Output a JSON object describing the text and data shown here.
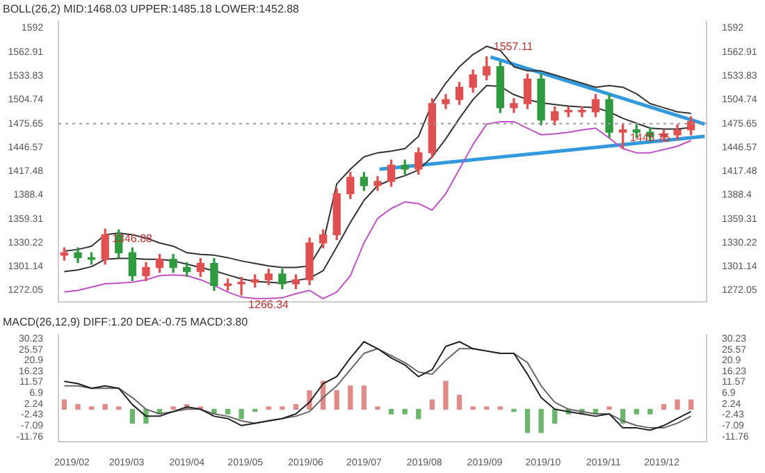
{
  "chart_data": [
    {
      "type": "candlestick",
      "title": "BOLL(26,2) MID:1468.03 UPPER:1485.18 LOWER:1452.88",
      "x": [
        "2019-01-28",
        "2019-02-04",
        "2019-02-11",
        "2019-02-18",
        "2019-02-25",
        "2019-03-04",
        "2019-03-11",
        "2019-03-18",
        "2019-03-25",
        "2019-04-01",
        "2019-04-08",
        "2019-04-15",
        "2019-04-22",
        "2019-04-29",
        "2019-05-06",
        "2019-05-13",
        "2019-05-20",
        "2019-05-27",
        "2019-06-03",
        "2019-06-10",
        "2019-06-17",
        "2019-06-24",
        "2019-07-01",
        "2019-07-08",
        "2019-07-15",
        "2019-07-22",
        "2019-07-29",
        "2019-08-05",
        "2019-08-12",
        "2019-08-19",
        "2019-08-26",
        "2019-09-02",
        "2019-09-09",
        "2019-09-16",
        "2019-09-23",
        "2019-09-30",
        "2019-10-07",
        "2019-10-14",
        "2019-10-21",
        "2019-10-28",
        "2019-11-04",
        "2019-11-11",
        "2019-11-18",
        "2019-11-25",
        "2019-12-02",
        "2019-12-09",
        "2019-12-16"
      ],
      "ohlc": [
        [
          1315,
          1324,
          1309,
          1318
        ],
        [
          1318,
          1324,
          1306,
          1312
        ],
        [
          1312,
          1318,
          1304,
          1310
        ],
        [
          1310,
          1346.88,
          1304,
          1340
        ],
        [
          1340,
          1346,
          1312,
          1318
        ],
        [
          1318,
          1324,
          1284,
          1290
        ],
        [
          1290,
          1306,
          1284,
          1300
        ],
        [
          1300,
          1316,
          1294,
          1310
        ],
        [
          1310,
          1316,
          1294,
          1300
        ],
        [
          1300,
          1306,
          1289,
          1295
        ],
        [
          1295,
          1311,
          1289,
          1305
        ],
        [
          1305,
          1311,
          1272,
          1278
        ],
        [
          1278,
          1286,
          1272,
          1280
        ],
        [
          1280,
          1288,
          1266.34,
          1282
        ],
        [
          1282,
          1291,
          1276,
          1285
        ],
        [
          1285,
          1298,
          1279,
          1292
        ],
        [
          1292,
          1298,
          1274,
          1280
        ],
        [
          1280,
          1291,
          1274,
          1285
        ],
        [
          1285,
          1336,
          1279,
          1330
        ],
        [
          1330,
          1346,
          1324,
          1340
        ],
        [
          1340,
          1396,
          1334,
          1390
        ],
        [
          1390,
          1416,
          1384,
          1410
        ],
        [
          1410,
          1416,
          1394,
          1400
        ],
        [
          1400,
          1411,
          1394,
          1405
        ],
        [
          1405,
          1431,
          1399,
          1425
        ],
        [
          1425,
          1431,
          1414,
          1420
        ],
        [
          1420,
          1446,
          1414,
          1440
        ],
        [
          1440,
          1506,
          1434,
          1500
        ],
        [
          1500,
          1511,
          1494,
          1505
        ],
        [
          1505,
          1526,
          1499,
          1520
        ],
        [
          1520,
          1541,
          1514,
          1535
        ],
        [
          1535,
          1557.11,
          1529,
          1545
        ],
        [
          1545,
          1551,
          1489,
          1495
        ],
        [
          1495,
          1506,
          1489,
          1500
        ],
        [
          1500,
          1536,
          1494,
          1530
        ],
        [
          1530,
          1536,
          1474,
          1480
        ],
        [
          1480,
          1496,
          1474,
          1490
        ],
        [
          1490,
          1496,
          1484,
          1490
        ],
        [
          1490,
          1496,
          1484,
          1490
        ],
        [
          1490,
          1511,
          1484,
          1505
        ],
        [
          1505,
          1511,
          1459,
          1465
        ],
        [
          1465,
          1474,
          1445.75,
          1468
        ],
        [
          1468,
          1474,
          1459,
          1465
        ],
        [
          1465,
          1471,
          1454,
          1460
        ],
        [
          1460,
          1468,
          1454,
          1462
        ],
        [
          1462,
          1474,
          1456,
          1468
        ],
        [
          1468,
          1484,
          1462,
          1478
        ]
      ],
      "colors": [
        "#e05050",
        "#2f9a3f",
        "#2f9a3f",
        "#e05050",
        "#2f9a3f",
        "#2f9a3f",
        "#e05050",
        "#e05050",
        "#2f9a3f",
        "#2f9a3f",
        "#e05050",
        "#2f9a3f",
        "#e05050",
        "#e05050",
        "#e05050",
        "#e05050",
        "#2f9a3f",
        "#e05050",
        "#e05050",
        "#e05050",
        "#e05050",
        "#e05050",
        "#2f9a3f",
        "#e05050",
        "#e05050",
        "#2f9a3f",
        "#e05050",
        "#e05050",
        "#e05050",
        "#e05050",
        "#e05050",
        "#e05050",
        "#2f9a3f",
        "#e05050",
        "#e05050",
        "#2f9a3f",
        "#e05050",
        "#e05050",
        "#e05050",
        "#e05050",
        "#2f9a3f",
        "#e05050",
        "#2f9a3f",
        "#2f9a3f",
        "#e05050",
        "#e05050",
        "#e05050"
      ],
      "series": [
        {
          "type": "line",
          "color": "#333333",
          "values": [
            1320,
            1322,
            1326,
            1340,
            1342,
            1340,
            1336,
            1330,
            1326,
            1318,
            1316,
            1315,
            1312,
            1308,
            1305,
            1302,
            1300,
            1300,
            1302,
            1330,
            1402,
            1420,
            1435,
            1440,
            1442,
            1445,
            1460,
            1500,
            1525,
            1545,
            1560,
            1570,
            1565,
            1545,
            1540,
            1540,
            1535,
            1530,
            1525,
            1520,
            1522,
            1520,
            1512,
            1500,
            1495,
            1490,
            1488
          ]
        },
        {
          "type": "line",
          "color": "#333333",
          "values": [
            1295,
            1297,
            1301,
            1310,
            1311,
            1311,
            1310,
            1310,
            1308,
            1304,
            1300,
            1296,
            1291,
            1286,
            1283,
            1282,
            1281,
            1284,
            1287,
            1296,
            1325,
            1355,
            1382,
            1400,
            1407,
            1412,
            1419,
            1435,
            1457,
            1482,
            1505,
            1522,
            1521,
            1511,
            1505,
            1501,
            1499,
            1497,
            1496,
            1495,
            1490,
            1482,
            1476,
            1470,
            1469,
            1469,
            1471
          ]
        },
        {
          "type": "line",
          "color": "#c050c8",
          "values": [
            1270,
            1272,
            1276,
            1280,
            1281,
            1282,
            1285,
            1290,
            1291,
            1290,
            1285,
            1278,
            1270,
            1264,
            1262,
            1262,
            1263,
            1268,
            1272,
            1262,
            1270,
            1290,
            1330,
            1360,
            1372,
            1380,
            1378,
            1370,
            1390,
            1420,
            1450,
            1475,
            1478,
            1478,
            1470,
            1462,
            1463,
            1465,
            1468,
            1470,
            1458,
            1445,
            1440,
            1440,
            1444,
            1448,
            1455
          ]
        },
        {
          "type": "line",
          "color": "#3399dd",
          "x": [
            "2019-09-04",
            "2019-12-23"
          ],
          "values": [
            1557,
            1475
          ]
        },
        {
          "type": "line",
          "color": "#3399dd",
          "x": [
            "2019-07-09",
            "2019-12-23"
          ],
          "values": [
            1420,
            1460
          ]
        }
      ],
      "annotations": [
        {
          "text": "1346.88",
          "x": "2019-02-18",
          "y": 1346.88
        },
        {
          "text": "1557.11",
          "x": "2019-09-02",
          "y": 1557.11
        },
        {
          "text": "1266.34",
          "x": "2019-04-29",
          "y": 1266.34
        },
        {
          "text": "1445.75",
          "x": "2019-11-11",
          "y": 1445.75
        }
      ],
      "ref_lines": [
        {
          "axis": "y",
          "value": 1475.65,
          "label": null,
          "color": "#999999",
          "line_style": "dotted"
        }
      ],
      "xlim": [
        "2019-01-25",
        "2019-12-24"
      ],
      "ylim": [
        1258,
        1600
      ],
      "yticks": [
        1272.05,
        1301.14,
        1330.22,
        1359.31,
        1388.4,
        1417.48,
        1446.57,
        1475.65,
        1504.74,
        1533.83,
        1562.91,
        1592
      ],
      "y2lim": [
        1258,
        1600
      ],
      "y2ticks": [
        1272.05,
        1301.14,
        1330.22,
        1359.31,
        1388.4,
        1417.48,
        1446.57,
        1475.65,
        1504.74,
        1533.83,
        1562.91,
        1592
      ],
      "tick_labels": "y",
      "legend": false
    },
    {
      "type": "bar",
      "title": "MACD(26,12,9) DIFF:1.20 DEA:-0.75 MACD:3.80",
      "x": [
        "2019-01-28",
        "2019-02-04",
        "2019-02-11",
        "2019-02-18",
        "2019-02-25",
        "2019-03-04",
        "2019-03-11",
        "2019-03-18",
        "2019-03-25",
        "2019-04-01",
        "2019-04-08",
        "2019-04-15",
        "2019-04-22",
        "2019-04-29",
        "2019-05-06",
        "2019-05-13",
        "2019-05-20",
        "2019-05-27",
        "2019-06-03",
        "2019-06-10",
        "2019-06-17",
        "2019-06-24",
        "2019-07-01",
        "2019-07-08",
        "2019-07-15",
        "2019-07-22",
        "2019-07-29",
        "2019-08-05",
        "2019-08-12",
        "2019-08-19",
        "2019-08-26",
        "2019-09-02",
        "2019-09-09",
        "2019-09-16",
        "2019-09-23",
        "2019-09-30",
        "2019-10-07",
        "2019-10-14",
        "2019-10-21",
        "2019-10-28",
        "2019-11-04",
        "2019-11-11",
        "2019-11-18",
        "2019-11-25",
        "2019-12-02",
        "2019-12-09",
        "2019-12-16"
      ],
      "values": [
        4,
        2,
        1,
        2,
        1,
        -6,
        -6,
        -2,
        1,
        2,
        1,
        -2,
        -2,
        -4,
        -1,
        1,
        1,
        2,
        8,
        12,
        8,
        10,
        10,
        1,
        -2,
        -2,
        -4,
        4,
        12,
        6,
        1,
        1,
        1,
        -1,
        -10,
        -10,
        -6,
        -2,
        -2,
        -2,
        1,
        -6,
        -2,
        -2,
        2,
        4,
        4
      ],
      "colors": [
        "#e08a8a",
        "#e08a8a",
        "#e08a8a",
        "#e08a8a",
        "#e08a8a",
        "#6db56d",
        "#6db56d",
        "#6db56d",
        "#e08a8a",
        "#e08a8a",
        "#e08a8a",
        "#6db56d",
        "#6db56d",
        "#6db56d",
        "#6db56d",
        "#e08a8a",
        "#e08a8a",
        "#e08a8a",
        "#e08a8a",
        "#e08a8a",
        "#e08a8a",
        "#e08a8a",
        "#e08a8a",
        "#e08a8a",
        "#6db56d",
        "#6db56d",
        "#6db56d",
        "#e08a8a",
        "#e08a8a",
        "#e08a8a",
        "#e08a8a",
        "#e08a8a",
        "#e08a8a",
        "#6db56d",
        "#6db56d",
        "#6db56d",
        "#6db56d",
        "#6db56d",
        "#6db56d",
        "#6db56d",
        "#e08a8a",
        "#6db56d",
        "#6db56d",
        "#6db56d",
        "#e08a8a",
        "#e08a8a",
        "#e08a8a"
      ],
      "series": [
        {
          "type": "line",
          "color": "#222222",
          "values": [
            12,
            11,
            9,
            10,
            9,
            2,
            -3,
            -3,
            -1,
            1,
            0,
            -3,
            -4,
            -7,
            -6,
            -5,
            -4,
            -2,
            3,
            11,
            14,
            22,
            29,
            26,
            22,
            19,
            14,
            17,
            27,
            29,
            26,
            25,
            24,
            24,
            15,
            5,
            0,
            -1,
            -2,
            -3,
            -2,
            -8,
            -8,
            -9,
            -7,
            -4,
            -1
          ]
        },
        {
          "type": "line",
          "color": "#666666",
          "values": [
            10,
            10,
            9,
            9,
            9,
            5,
            0,
            -2,
            -1,
            0,
            0,
            -2,
            -3,
            -5,
            -6,
            -5,
            -4,
            -3,
            -1,
            5,
            10,
            17,
            24,
            26,
            23,
            20,
            16,
            15,
            21,
            26,
            26,
            25,
            24,
            24,
            20,
            10,
            3,
            0,
            -1,
            -2,
            -2,
            -5,
            -7,
            -8,
            -8,
            -6,
            -3
          ]
        }
      ],
      "xlim": [
        "2019-01-25",
        "2019-12-24"
      ],
      "xticks": [
        {
          "value": "2019-02-01",
          "label": "2019/02"
        },
        {
          "value": "2019-03-01",
          "label": "2019/03"
        },
        {
          "value": "2019-04-01",
          "label": "2019/04"
        },
        {
          "value": "2019-05-01",
          "label": "2019/05"
        },
        {
          "value": "2019-06-01",
          "label": "2019/06"
        },
        {
          "value": "2019-07-01",
          "label": "2019/07"
        },
        {
          "value": "2019-08-01",
          "label": "2019/08"
        },
        {
          "value": "2019-09-01",
          "label": "2019/09"
        },
        {
          "value": "2019-10-01",
          "label": "2019/10"
        },
        {
          "value": "2019-11-01",
          "label": "2019/11"
        },
        {
          "value": "2019-12-01",
          "label": "2019/12"
        }
      ],
      "ylim": [
        -14,
        32
      ],
      "yticks": [
        -11.76,
        -7.09,
        -2.43,
        2.24,
        6.9,
        11.57,
        16.23,
        20.9,
        25.57,
        30.23
      ],
      "y2lim": [
        -14,
        32
      ],
      "y2ticks": [
        -11.76,
        -7.09,
        -2.43,
        2.24,
        6.9,
        11.57,
        16.23,
        20.9,
        25.57,
        30.23
      ],
      "legend": false
    }
  ]
}
